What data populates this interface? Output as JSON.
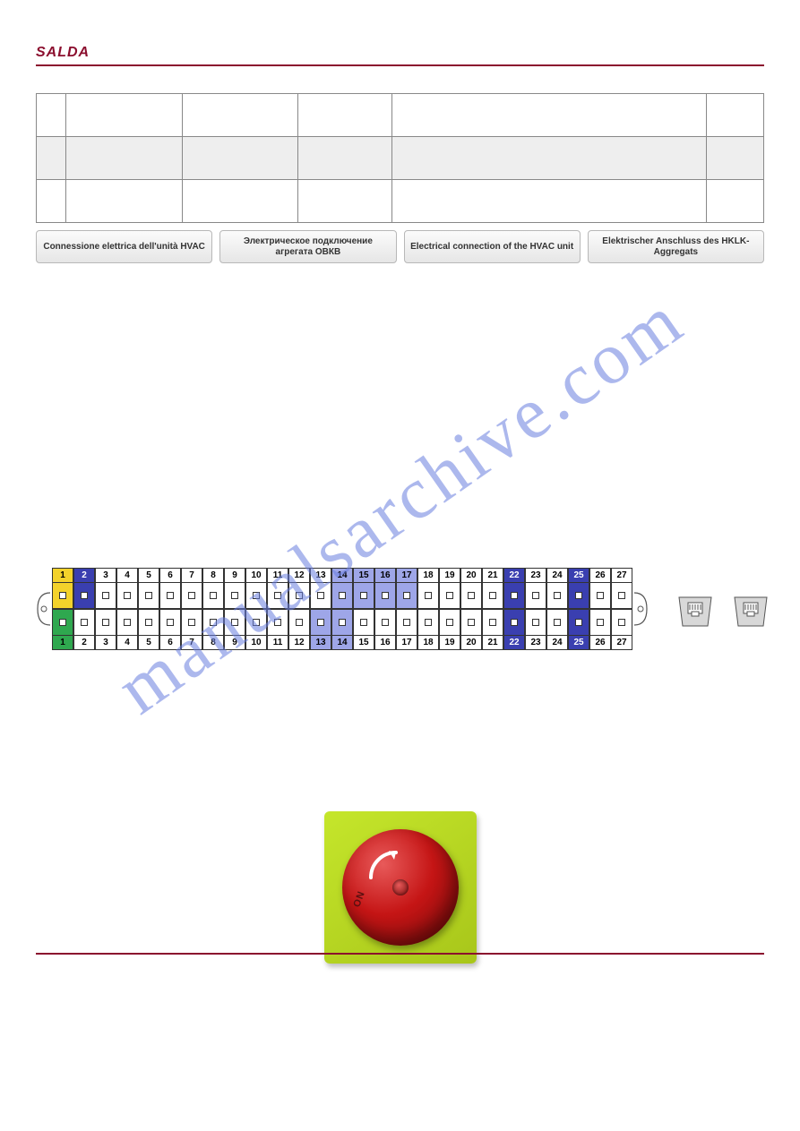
{
  "brand": {
    "name": "SALDA",
    "color": "#8b0e2e"
  },
  "colors": {
    "underline": "#8b0e2e",
    "table_border": "#888888",
    "alt_row_bg": "#eeeeee",
    "label_border": "#b8b8b8",
    "label_grad_top": "#fbfbfb",
    "label_grad_bottom": "#e6e6e6",
    "watermark": "#6a7fe0",
    "terminal_border": "#333333",
    "terminal_green": "#2fa84f",
    "terminal_yellow": "#f3d22b",
    "terminal_blue": "#3a3fb0",
    "terminal_lightblue": "#9ea6e8",
    "terminal_white": "#ffffff",
    "rj_fill": "#d8d8d8",
    "rj_stroke": "#555555",
    "switch_plate": "#c5e62b",
    "switch_plate_edge": "#a8c61a",
    "knob_red": "#c51515",
    "knob_red_dark": "#7a0a0a",
    "knob_highlight": "#e85a5a",
    "footer": "#8b0e2e"
  },
  "labels": [
    "Connessione elettrica dell'unità HVAC",
    "Электрическое подключение агрегата ОВКВ",
    "Electrical connection of the HVAC unit",
    "Elektrischer Anschluss des HKLK-Aggregats"
  ],
  "watermark_text": "manualsarchive.com",
  "terminals": {
    "count": 27,
    "top_row": [
      {
        "n": 1,
        "bg": "terminal_yellow",
        "fg": "#000000"
      },
      {
        "n": 2,
        "bg": "terminal_blue",
        "fg": "#ffffff"
      },
      {
        "n": 3,
        "bg": "terminal_white",
        "fg": "#000000"
      },
      {
        "n": 4,
        "bg": "terminal_white",
        "fg": "#000000"
      },
      {
        "n": 5,
        "bg": "terminal_white",
        "fg": "#000000"
      },
      {
        "n": 6,
        "bg": "terminal_white",
        "fg": "#000000"
      },
      {
        "n": 7,
        "bg": "terminal_white",
        "fg": "#000000"
      },
      {
        "n": 8,
        "bg": "terminal_white",
        "fg": "#000000"
      },
      {
        "n": 9,
        "bg": "terminal_white",
        "fg": "#000000"
      },
      {
        "n": 10,
        "bg": "terminal_white",
        "fg": "#000000"
      },
      {
        "n": 11,
        "bg": "terminal_white",
        "fg": "#000000"
      },
      {
        "n": 12,
        "bg": "terminal_white",
        "fg": "#000000"
      },
      {
        "n": 13,
        "bg": "terminal_white",
        "fg": "#000000"
      },
      {
        "n": 14,
        "bg": "terminal_lightblue",
        "fg": "#000000"
      },
      {
        "n": 15,
        "bg": "terminal_lightblue",
        "fg": "#000000"
      },
      {
        "n": 16,
        "bg": "terminal_lightblue",
        "fg": "#000000"
      },
      {
        "n": 17,
        "bg": "terminal_lightblue",
        "fg": "#000000"
      },
      {
        "n": 18,
        "bg": "terminal_white",
        "fg": "#000000"
      },
      {
        "n": 19,
        "bg": "terminal_white",
        "fg": "#000000"
      },
      {
        "n": 20,
        "bg": "terminal_white",
        "fg": "#000000"
      },
      {
        "n": 21,
        "bg": "terminal_white",
        "fg": "#000000"
      },
      {
        "n": 22,
        "bg": "terminal_blue",
        "fg": "#ffffff"
      },
      {
        "n": 23,
        "bg": "terminal_white",
        "fg": "#000000"
      },
      {
        "n": 24,
        "bg": "terminal_white",
        "fg": "#000000"
      },
      {
        "n": 25,
        "bg": "terminal_blue",
        "fg": "#ffffff"
      },
      {
        "n": 26,
        "bg": "terminal_white",
        "fg": "#000000"
      },
      {
        "n": 27,
        "bg": "terminal_white",
        "fg": "#000000"
      }
    ],
    "bottom_row": [
      {
        "n": 1,
        "bg": "terminal_green",
        "fg": "#000000"
      },
      {
        "n": 2,
        "bg": "terminal_white",
        "fg": "#000000"
      },
      {
        "n": 3,
        "bg": "terminal_white",
        "fg": "#000000"
      },
      {
        "n": 4,
        "bg": "terminal_white",
        "fg": "#000000"
      },
      {
        "n": 5,
        "bg": "terminal_white",
        "fg": "#000000"
      },
      {
        "n": 6,
        "bg": "terminal_white",
        "fg": "#000000"
      },
      {
        "n": 7,
        "bg": "terminal_white",
        "fg": "#000000"
      },
      {
        "n": 8,
        "bg": "terminal_white",
        "fg": "#000000"
      },
      {
        "n": 9,
        "bg": "terminal_white",
        "fg": "#000000"
      },
      {
        "n": 10,
        "bg": "terminal_white",
        "fg": "#000000"
      },
      {
        "n": 11,
        "bg": "terminal_white",
        "fg": "#000000"
      },
      {
        "n": 12,
        "bg": "terminal_white",
        "fg": "#000000"
      },
      {
        "n": 13,
        "bg": "terminal_lightblue",
        "fg": "#000000"
      },
      {
        "n": 14,
        "bg": "terminal_lightblue",
        "fg": "#000000"
      },
      {
        "n": 15,
        "bg": "terminal_white",
        "fg": "#000000"
      },
      {
        "n": 16,
        "bg": "terminal_white",
        "fg": "#000000"
      },
      {
        "n": 17,
        "bg": "terminal_white",
        "fg": "#000000"
      },
      {
        "n": 18,
        "bg": "terminal_white",
        "fg": "#000000"
      },
      {
        "n": 19,
        "bg": "terminal_white",
        "fg": "#000000"
      },
      {
        "n": 20,
        "bg": "terminal_white",
        "fg": "#000000"
      },
      {
        "n": 21,
        "bg": "terminal_white",
        "fg": "#000000"
      },
      {
        "n": 22,
        "bg": "terminal_blue",
        "fg": "#ffffff"
      },
      {
        "n": 23,
        "bg": "terminal_white",
        "fg": "#000000"
      },
      {
        "n": 24,
        "bg": "terminal_white",
        "fg": "#000000"
      },
      {
        "n": 25,
        "bg": "terminal_blue",
        "fg": "#ffffff"
      },
      {
        "n": 26,
        "bg": "terminal_white",
        "fg": "#000000"
      },
      {
        "n": 27,
        "bg": "terminal_white",
        "fg": "#000000"
      }
    ]
  },
  "switch": {
    "on_label": "ON"
  }
}
